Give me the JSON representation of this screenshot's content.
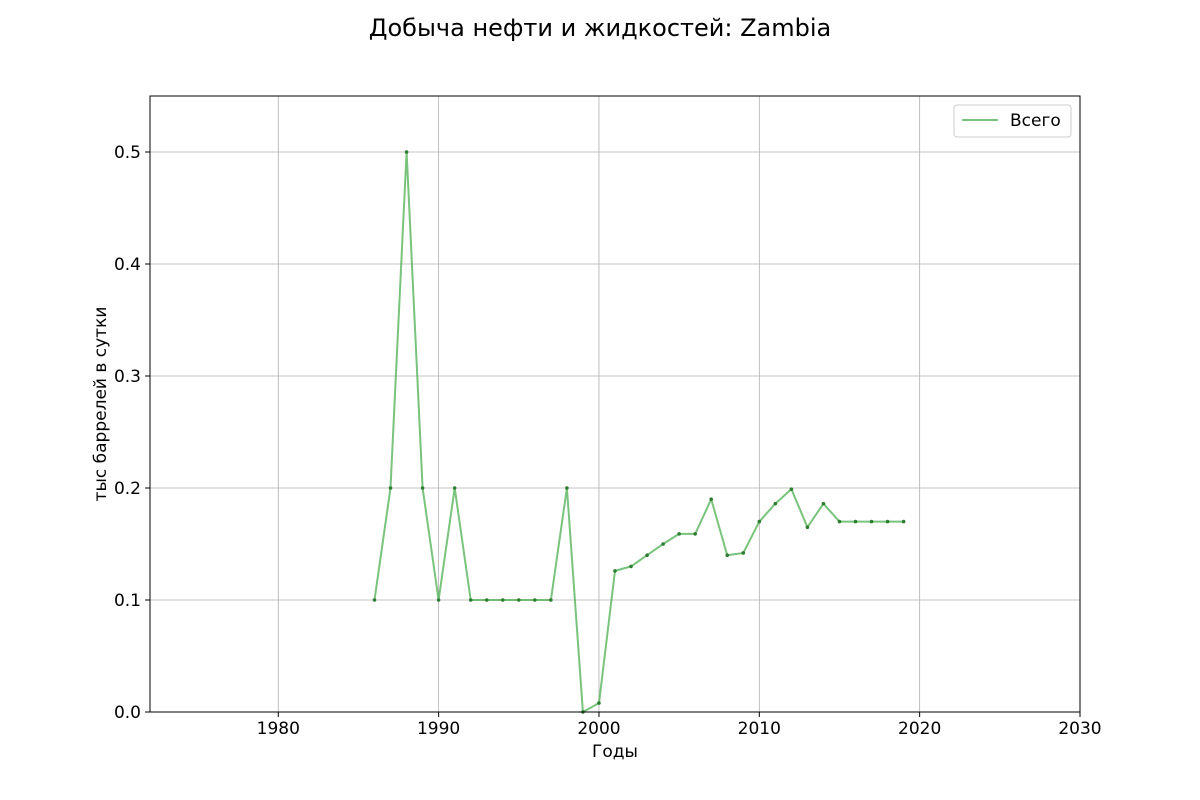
{
  "chart_data": {
    "type": "line",
    "title": "Добыча нефти и жидкостей: Zambia",
    "xlabel": "Годы",
    "ylabel": "тыс баррелей в сутки",
    "xlim": [
      1972,
      2030
    ],
    "ylim": [
      0,
      0.55
    ],
    "xticks": [
      1980,
      1990,
      2000,
      2010,
      2020,
      2030
    ],
    "yticks": [
      0.0,
      0.1,
      0.2,
      0.3,
      0.4,
      0.5
    ],
    "xtick_labels": [
      "1980",
      "1990",
      "2000",
      "2010",
      "2020",
      "2030"
    ],
    "ytick_labels": [
      "0.0",
      "0.1",
      "0.2",
      "0.3",
      "0.4",
      "0.5"
    ],
    "grid": true,
    "legend_position": "top-right",
    "series": [
      {
        "name": "Всего",
        "color": "#4caf50",
        "x": [
          1986,
          1987,
          1988,
          1989,
          1990,
          1991,
          1992,
          1993,
          1994,
          1995,
          1996,
          1997,
          1998,
          1999,
          2000,
          2001,
          2002,
          2003,
          2004,
          2005,
          2006,
          2007,
          2008,
          2009,
          2010,
          2011,
          2012,
          2013,
          2014,
          2015,
          2016,
          2017,
          2018,
          2019
        ],
        "y": [
          0.1,
          0.2,
          0.5,
          0.2,
          0.1,
          0.2,
          0.1,
          0.1,
          0.1,
          0.1,
          0.1,
          0.1,
          0.2,
          0.0,
          0.008,
          0.126,
          0.13,
          0.14,
          0.15,
          0.159,
          0.159,
          0.19,
          0.14,
          0.142,
          0.17,
          0.186,
          0.199,
          0.165,
          0.186,
          0.17,
          0.17,
          0.17,
          0.17,
          0.17
        ]
      }
    ]
  }
}
